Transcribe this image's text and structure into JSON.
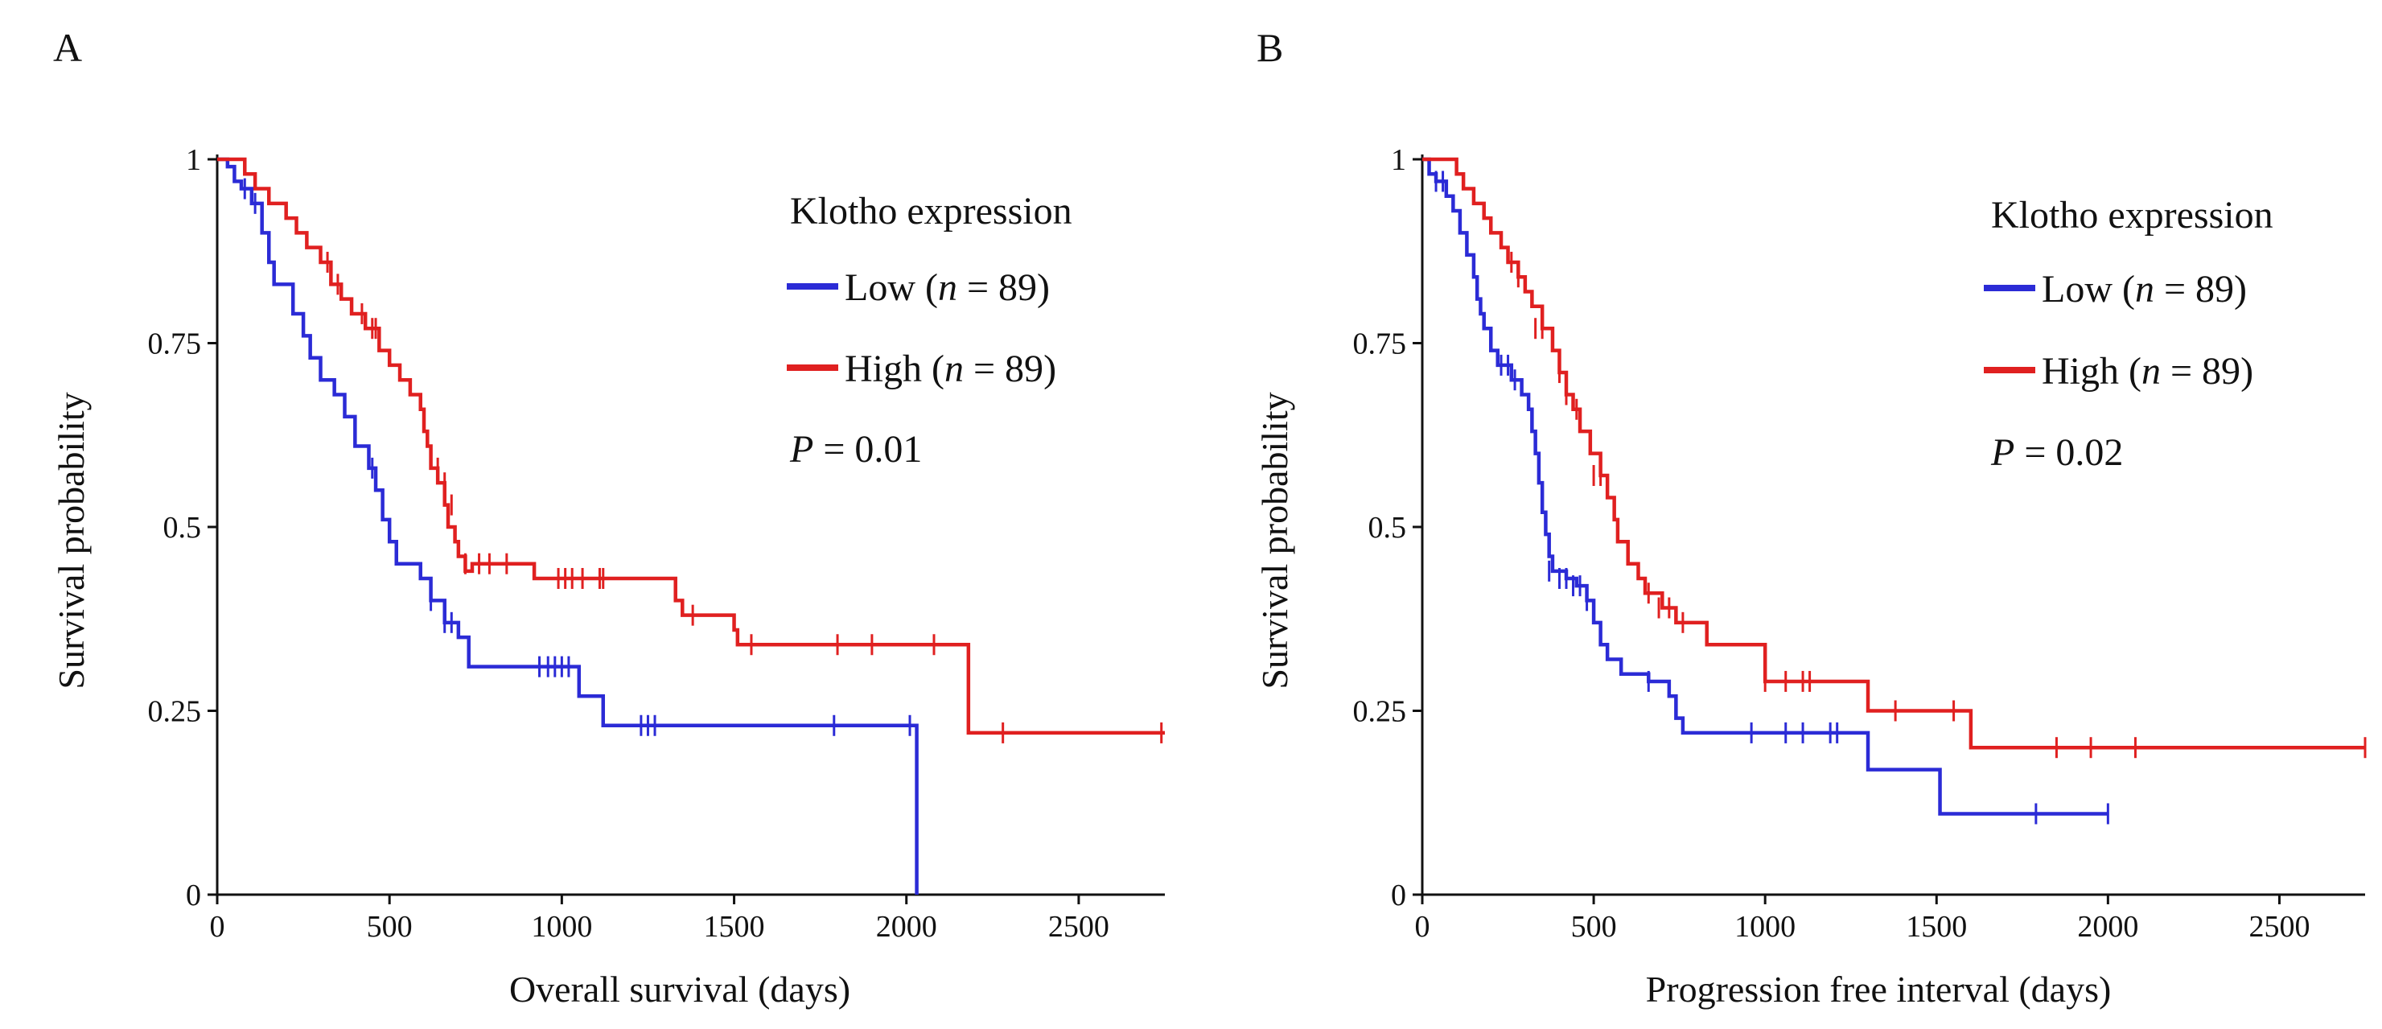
{
  "figure_letters": [
    "A",
    "B"
  ],
  "chart_data": [
    {
      "panel": "A",
      "type": "line",
      "subtype": "kaplan-meier",
      "xlabel": "Overall survival (days)",
      "ylabel": "Survival probability",
      "xlim": [
        0,
        2750
      ],
      "ylim": [
        0,
        1
      ],
      "xticks": [
        0,
        500,
        1000,
        1500,
        2000,
        2500
      ],
      "xtick_labels": [
        "0",
        "500",
        "1000",
        "1500",
        "2000",
        "2500"
      ],
      "yticks": [
        0,
        0.25,
        0.5,
        0.75,
        1
      ],
      "ytick_labels": [
        "0",
        "0.25",
        "0.5",
        "0.75",
        "1"
      ],
      "legend_title": "Klotho expression",
      "pvalue": "= 0.01",
      "series": [
        {
          "name": "Low",
          "n": "= 89",
          "color": "#2b2bd6",
          "steps": [
            [
              0,
              1
            ],
            [
              30,
              0.99
            ],
            [
              50,
              0.97
            ],
            [
              70,
              0.96
            ],
            [
              100,
              0.94
            ],
            [
              130,
              0.9
            ],
            [
              150,
              0.86
            ],
            [
              165,
              0.83
            ],
            [
              220,
              0.79
            ],
            [
              250,
              0.76
            ],
            [
              270,
              0.73
            ],
            [
              300,
              0.7
            ],
            [
              340,
              0.68
            ],
            [
              370,
              0.65
            ],
            [
              400,
              0.61
            ],
            [
              440,
              0.58
            ],
            [
              460,
              0.55
            ],
            [
              480,
              0.51
            ],
            [
              500,
              0.48
            ],
            [
              520,
              0.45
            ],
            [
              590,
              0.43
            ],
            [
              620,
              0.4
            ],
            [
              660,
              0.37
            ],
            [
              700,
              0.35
            ],
            [
              730,
              0.31
            ],
            [
              1050,
              0.27
            ],
            [
              1120,
              0.23
            ],
            [
              2030,
              0.0
            ]
          ],
          "end_x": 2030,
          "censor": [
            [
              80,
              0.96
            ],
            [
              110,
              0.94
            ],
            [
              450,
              0.58
            ],
            [
              620,
              0.4
            ],
            [
              660,
              0.37
            ],
            [
              680,
              0.37
            ],
            [
              935,
              0.31
            ],
            [
              960,
              0.31
            ],
            [
              980,
              0.31
            ],
            [
              1000,
              0.31
            ],
            [
              1020,
              0.31
            ],
            [
              1230,
              0.23
            ],
            [
              1250,
              0.23
            ],
            [
              1270,
              0.23
            ],
            [
              1790,
              0.23
            ],
            [
              2010,
              0.23
            ]
          ]
        },
        {
          "name": "High",
          "n": "= 89",
          "color": "#e02020",
          "steps": [
            [
              0,
              1
            ],
            [
              80,
              0.98
            ],
            [
              110,
              0.96
            ],
            [
              150,
              0.94
            ],
            [
              200,
              0.92
            ],
            [
              230,
              0.9
            ],
            [
              260,
              0.88
            ],
            [
              300,
              0.86
            ],
            [
              330,
              0.83
            ],
            [
              360,
              0.81
            ],
            [
              390,
              0.79
            ],
            [
              430,
              0.77
            ],
            [
              470,
              0.74
            ],
            [
              500,
              0.72
            ],
            [
              530,
              0.7
            ],
            [
              560,
              0.68
            ],
            [
              590,
              0.66
            ],
            [
              600,
              0.63
            ],
            [
              610,
              0.61
            ],
            [
              620,
              0.58
            ],
            [
              640,
              0.56
            ],
            [
              660,
              0.53
            ],
            [
              670,
              0.5
            ],
            [
              690,
              0.48
            ],
            [
              700,
              0.46
            ],
            [
              720,
              0.44
            ],
            [
              740,
              0.45
            ],
            [
              920,
              0.43
            ],
            [
              1330,
              0.4
            ],
            [
              1350,
              0.38
            ],
            [
              1500,
              0.36
            ],
            [
              1510,
              0.34
            ],
            [
              2180,
              0.22
            ]
          ],
          "end_x": 2750,
          "censor": [
            [
              320,
              0.86
            ],
            [
              350,
              0.83
            ],
            [
              420,
              0.79
            ],
            [
              450,
              0.77
            ],
            [
              460,
              0.77
            ],
            [
              640,
              0.58
            ],
            [
              660,
              0.56
            ],
            [
              680,
              0.53
            ],
            [
              720,
              0.45
            ],
            [
              760,
              0.45
            ],
            [
              790,
              0.45
            ],
            [
              840,
              0.45
            ],
            [
              990,
              0.43
            ],
            [
              1010,
              0.43
            ],
            [
              1030,
              0.43
            ],
            [
              1060,
              0.43
            ],
            [
              1110,
              0.43
            ],
            [
              1120,
              0.43
            ],
            [
              1380,
              0.38
            ],
            [
              1550,
              0.34
            ],
            [
              1800,
              0.34
            ],
            [
              1900,
              0.34
            ],
            [
              2080,
              0.34
            ],
            [
              2280,
              0.22
            ],
            [
              2740,
              0.22
            ]
          ]
        }
      ]
    },
    {
      "panel": "B",
      "type": "line",
      "subtype": "kaplan-meier",
      "xlabel": "Progression free interval (days)",
      "ylabel": "Survival probability",
      "xlim": [
        0,
        2750
      ],
      "ylim": [
        0,
        1
      ],
      "xticks": [
        0,
        500,
        1000,
        1500,
        2000,
        2500
      ],
      "xtick_labels": [
        "0",
        "500",
        "1000",
        "1500",
        "2000",
        "2500"
      ],
      "yticks": [
        0,
        0.25,
        0.5,
        0.75,
        1
      ],
      "ytick_labels": [
        "0",
        "0.25",
        "0.5",
        "0.75",
        "1"
      ],
      "legend_title": "Klotho expression",
      "pvalue": "= 0.02",
      "series": [
        {
          "name": "Low",
          "n": "= 89",
          "color": "#2b2bd6",
          "steps": [
            [
              0,
              1
            ],
            [
              20,
              0.98
            ],
            [
              40,
              0.97
            ],
            [
              70,
              0.95
            ],
            [
              90,
              0.93
            ],
            [
              110,
              0.9
            ],
            [
              130,
              0.87
            ],
            [
              150,
              0.84
            ],
            [
              160,
              0.81
            ],
            [
              170,
              0.79
            ],
            [
              180,
              0.77
            ],
            [
              200,
              0.74
            ],
            [
              220,
              0.72
            ],
            [
              260,
              0.7
            ],
            [
              290,
              0.68
            ],
            [
              310,
              0.66
            ],
            [
              320,
              0.63
            ],
            [
              330,
              0.6
            ],
            [
              340,
              0.56
            ],
            [
              350,
              0.52
            ],
            [
              360,
              0.49
            ],
            [
              370,
              0.46
            ],
            [
              380,
              0.44
            ],
            [
              420,
              0.43
            ],
            [
              450,
              0.42
            ],
            [
              480,
              0.4
            ],
            [
              500,
              0.37
            ],
            [
              520,
              0.34
            ],
            [
              540,
              0.32
            ],
            [
              580,
              0.3
            ],
            [
              660,
              0.29
            ],
            [
              720,
              0.27
            ],
            [
              740,
              0.24
            ],
            [
              760,
              0.22
            ],
            [
              1300,
              0.17
            ],
            [
              1510,
              0.11
            ]
          ],
          "end_x": 2000,
          "censor": [
            [
              40,
              0.97
            ],
            [
              60,
              0.97
            ],
            [
              230,
              0.72
            ],
            [
              250,
              0.72
            ],
            [
              270,
              0.7
            ],
            [
              370,
              0.44
            ],
            [
              400,
              0.43
            ],
            [
              420,
              0.43
            ],
            [
              440,
              0.42
            ],
            [
              460,
              0.42
            ],
            [
              480,
              0.4
            ],
            [
              660,
              0.29
            ],
            [
              960,
              0.22
            ],
            [
              1060,
              0.22
            ],
            [
              1110,
              0.22
            ],
            [
              1190,
              0.22
            ],
            [
              1210,
              0.22
            ],
            [
              1790,
              0.11
            ],
            [
              2000,
              0.11
            ]
          ]
        },
        {
          "name": "High",
          "n": "= 89",
          "color": "#e02020",
          "steps": [
            [
              0,
              1
            ],
            [
              100,
              0.98
            ],
            [
              120,
              0.96
            ],
            [
              150,
              0.94
            ],
            [
              180,
              0.92
            ],
            [
              200,
              0.9
            ],
            [
              230,
              0.88
            ],
            [
              250,
              0.86
            ],
            [
              280,
              0.84
            ],
            [
              300,
              0.82
            ],
            [
              320,
              0.8
            ],
            [
              350,
              0.77
            ],
            [
              380,
              0.74
            ],
            [
              400,
              0.71
            ],
            [
              420,
              0.68
            ],
            [
              440,
              0.66
            ],
            [
              460,
              0.63
            ],
            [
              490,
              0.6
            ],
            [
              520,
              0.57
            ],
            [
              540,
              0.54
            ],
            [
              560,
              0.51
            ],
            [
              570,
              0.48
            ],
            [
              600,
              0.45
            ],
            [
              630,
              0.43
            ],
            [
              650,
              0.41
            ],
            [
              700,
              0.39
            ],
            [
              740,
              0.37
            ],
            [
              830,
              0.34
            ],
            [
              1000,
              0.29
            ],
            [
              1300,
              0.25
            ],
            [
              1600,
              0.2
            ]
          ],
          "end_x": 2750,
          "censor": [
            [
              260,
              0.86
            ],
            [
              280,
              0.84
            ],
            [
              330,
              0.77
            ],
            [
              350,
              0.77
            ],
            [
              400,
              0.71
            ],
            [
              420,
              0.68
            ],
            [
              450,
              0.66
            ],
            [
              500,
              0.57
            ],
            [
              520,
              0.57
            ],
            [
              660,
              0.41
            ],
            [
              690,
              0.39
            ],
            [
              720,
              0.39
            ],
            [
              760,
              0.37
            ],
            [
              1000,
              0.29
            ],
            [
              1060,
              0.29
            ],
            [
              1110,
              0.29
            ],
            [
              1130,
              0.29
            ],
            [
              1380,
              0.25
            ],
            [
              1550,
              0.25
            ],
            [
              1850,
              0.2
            ],
            [
              1950,
              0.2
            ],
            [
              2080,
              0.2
            ],
            [
              2750,
              0.2
            ]
          ]
        }
      ]
    }
  ]
}
